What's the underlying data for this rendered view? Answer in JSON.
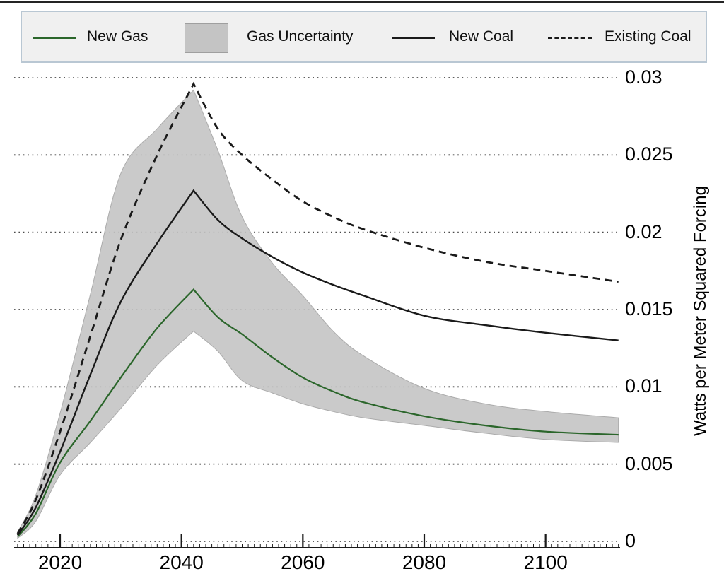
{
  "page": {
    "background": "#ffffff",
    "top_rule_color": "#242424"
  },
  "legend": {
    "background": "#f0f0f0",
    "border_color": "#b9c7d3",
    "items": [
      {
        "label": "New Gas",
        "swatch": "line",
        "color": "#2b662b"
      },
      {
        "label": "Gas Uncertainty",
        "swatch": "box",
        "color": "#c4c4c4",
        "border_color": "#9f9f9f"
      },
      {
        "label": "New Coal",
        "swatch": "line",
        "color": "#1a1a1a"
      },
      {
        "label": "Existing Coal",
        "swatch": "dashed-line",
        "color": "#1a1a1a"
      }
    ]
  },
  "chart_data": {
    "type": "line",
    "title": "",
    "xlabel": "",
    "ylabel": "Watts per Meter Squared Forcing",
    "xlim": [
      2013,
      2112
    ],
    "ylim": [
      0,
      0.03
    ],
    "grid": "dotted-horizontal",
    "legend_position": "top",
    "peak_year": 2042,
    "x": [
      2013,
      2016,
      2020,
      2025,
      2030,
      2036,
      2042,
      2046,
      2050,
      2055,
      2060,
      2065,
      2070,
      2080,
      2090,
      2100,
      2112
    ],
    "series": [
      {
        "name": "New Gas",
        "style": "solid",
        "color": "#2b662b",
        "values": [
          0.0003,
          0.0018,
          0.0051,
          0.0078,
          0.0106,
          0.0138,
          0.0163,
          0.0145,
          0.0134,
          0.0119,
          0.0106,
          0.0097,
          0.009,
          0.0081,
          0.0075,
          0.0071,
          0.0069
        ]
      },
      {
        "name": "New Coal",
        "style": "solid",
        "color": "#1a1a1a",
        "values": [
          0.0004,
          0.0022,
          0.0058,
          0.0108,
          0.0155,
          0.0193,
          0.0227,
          0.0208,
          0.0196,
          0.0184,
          0.0174,
          0.0166,
          0.0159,
          0.0146,
          0.014,
          0.0135,
          0.013
        ]
      },
      {
        "name": "Existing Coal",
        "style": "dashed",
        "color": "#1a1a1a",
        "values": [
          0.0005,
          0.0027,
          0.0071,
          0.0133,
          0.0195,
          0.025,
          0.0296,
          0.0267,
          0.025,
          0.0234,
          0.022,
          0.021,
          0.0202,
          0.019,
          0.0181,
          0.0175,
          0.0168
        ]
      }
    ],
    "band": {
      "name": "Gas Uncertainty",
      "fill": "#c4c4c4",
      "edge_color": "#ababab",
      "upper": [
        0.0006,
        0.003,
        0.0083,
        0.016,
        0.0238,
        0.0267,
        0.0292,
        0.0253,
        0.021,
        0.018,
        0.0159,
        0.0136,
        0.012,
        0.0099,
        0.0089,
        0.0084,
        0.008
      ],
      "lower": [
        0.0002,
        0.0013,
        0.0043,
        0.0064,
        0.0086,
        0.0114,
        0.0136,
        0.0123,
        0.0104,
        0.0096,
        0.0089,
        0.0084,
        0.008,
        0.0075,
        0.007,
        0.0066,
        0.0064
      ]
    },
    "xticks": [
      2020,
      2040,
      2060,
      2080,
      2100
    ],
    "x_tick_labels": [
      "2020",
      "2040",
      "2060",
      "2080",
      "2100"
    ],
    "yticks": [
      0,
      0.005,
      0.01,
      0.015,
      0.02,
      0.025,
      0.03
    ],
    "y_tick_labels": [
      "0",
      "0.005",
      "0.01",
      "0.015",
      "0.02",
      "0.025",
      "0.03"
    ]
  }
}
